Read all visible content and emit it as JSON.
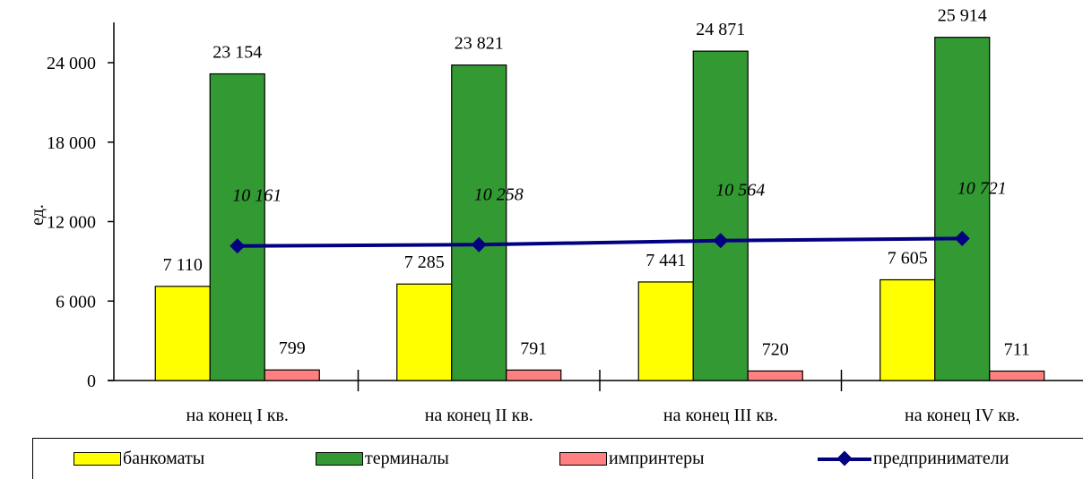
{
  "chart_data": {
    "type": "bar",
    "ylabel": "ед.",
    "ylim": [
      0,
      27000
    ],
    "yticks": [
      0,
      6000,
      12000,
      18000,
      24000
    ],
    "ytick_labels": [
      "0",
      "6 000",
      "12 000",
      "18 000",
      "24 000"
    ],
    "categories": [
      "на конец I кв.",
      "на конец II кв.",
      "на конец III кв.",
      "на конец IV кв."
    ],
    "series": [
      {
        "name": "банкоматы",
        "type": "bar",
        "color": "#ffff00",
        "values": [
          7110,
          7285,
          7441,
          7605
        ],
        "labels": [
          "7 110",
          "7 285",
          "7 441",
          "7 605"
        ]
      },
      {
        "name": "терминалы",
        "type": "bar",
        "color": "#339933",
        "values": [
          23154,
          23821,
          24871,
          25914
        ],
        "labels": [
          "23 154",
          "23 821",
          "24 871",
          "25 914"
        ]
      },
      {
        "name": "импринтеры",
        "type": "bar",
        "color": "#ff8080",
        "values": [
          799,
          791,
          720,
          711
        ],
        "labels": [
          "799",
          "791",
          "720",
          "711"
        ]
      },
      {
        "name": "предприниматели",
        "type": "line",
        "color": "#000080",
        "values": [
          10161,
          10258,
          10564,
          10721
        ],
        "labels": [
          "10 161",
          "10 258",
          "10 564",
          "10 721"
        ]
      }
    ],
    "legend": "bottom"
  }
}
